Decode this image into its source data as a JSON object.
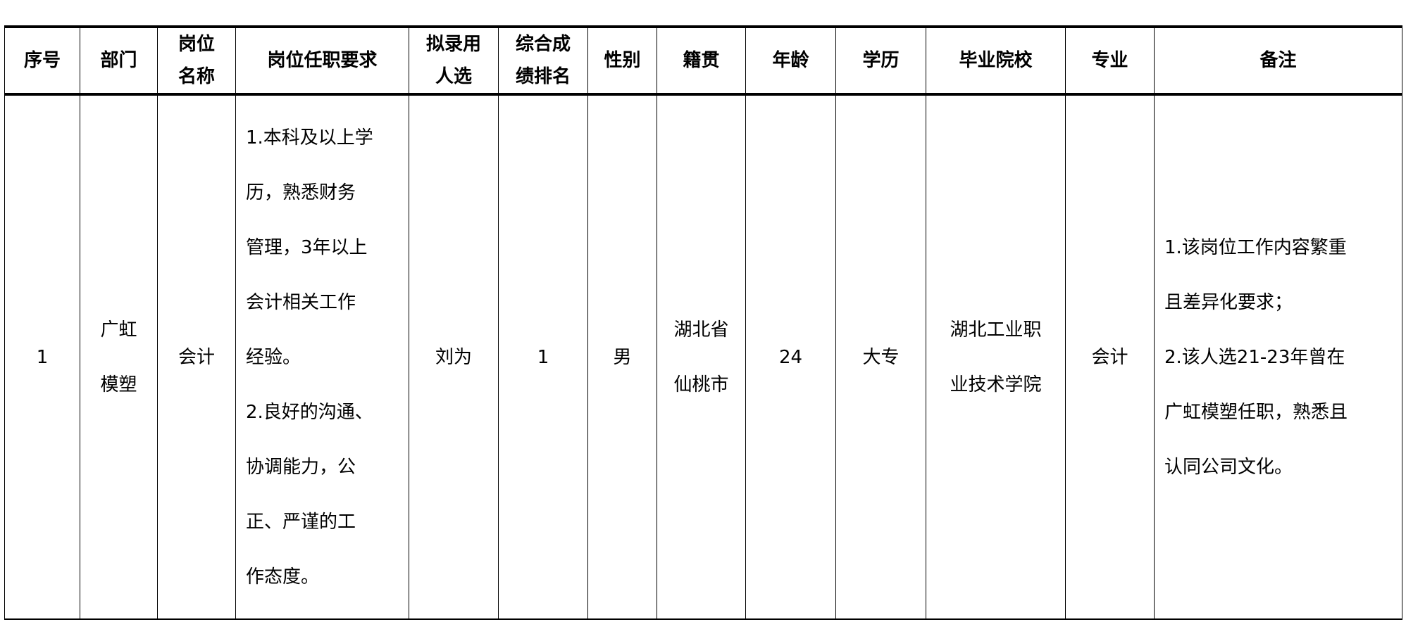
{
  "headers": [
    "序号",
    "部门",
    "岗位名称",
    "岗位任职要求",
    "拟录用人选",
    "综合成绩排名",
    "性别",
    "籍贯",
    "年龄",
    "学历",
    "毕业院校",
    "专业",
    "备注"
  ],
  "header_lines": {
    "h2": [
      "岗位",
      "名称"
    ],
    "h4": [
      "拟录用",
      "人选"
    ],
    "h5": [
      "综合成",
      "绩排名"
    ]
  },
  "rows": [
    {
      "index": "1",
      "department_lines": [
        "广虹",
        "模塑"
      ],
      "position": "会计",
      "requirements_lines": [
        "1.本科及以上学",
        "历，熟悉财务",
        "管理，3年以上",
        "会计相关工作",
        "经验。",
        "2.良好的沟通、",
        "协调能力，公",
        "正、严谨的工",
        "作态度。"
      ],
      "candidate": "刘为",
      "rank": "1",
      "gender": "男",
      "origin_lines": [
        "湖北省",
        "仙桃市"
      ],
      "age": "24",
      "education": "大专",
      "school_lines": [
        "湖北工业职",
        "业技术学院"
      ],
      "major": "会计",
      "remarks_lines": [
        "1.该岗位工作内容繁重",
        "且差异化要求；",
        "2.该人选21-23年曾在",
        "广虹模塑任职，熟悉且",
        "认同公司文化。"
      ]
    }
  ]
}
